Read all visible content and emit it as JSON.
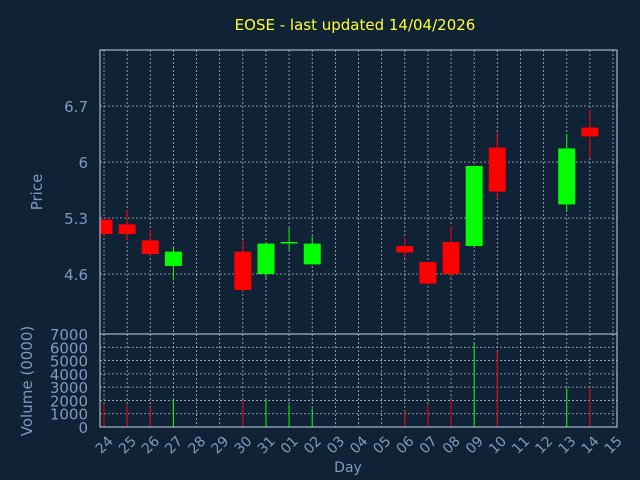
{
  "chart_data": {
    "type": "candlestick",
    "title": "EOSE - last updated 14/04/2026",
    "xlabel": "Day",
    "price_panel": {
      "ylabel": "Price",
      "ylim": [
        3.85,
        7.4
      ],
      "yticks": [
        "4.6",
        "5.3",
        "6",
        "6.7"
      ],
      "grid": true
    },
    "volume_panel": {
      "ylabel": "Volume (0000)",
      "ylim": [
        0,
        7000
      ],
      "yticks": [
        "0",
        "1000",
        "2000",
        "3000",
        "4000",
        "5000",
        "6000",
        "7000"
      ],
      "grid": true
    },
    "x_ticks": [
      "24",
      "25",
      "26",
      "27",
      "28",
      "29",
      "30",
      "31",
      "01",
      "02",
      "03",
      "04",
      "05",
      "06",
      "07",
      "08",
      "09",
      "10",
      "11",
      "12",
      "13",
      "14",
      "15"
    ],
    "up_color": "#00ff00",
    "down_color": "#ff0000",
    "candles": [
      {
        "x": 0,
        "open": 5.28,
        "high": 5.3,
        "low": 5.08,
        "close": 5.1,
        "volume": 1800
      },
      {
        "x": 1,
        "open": 5.22,
        "high": 5.4,
        "low": 5.02,
        "close": 5.1,
        "volume": 1700
      },
      {
        "x": 2,
        "open": 5.02,
        "high": 5.15,
        "low": 4.82,
        "close": 4.85,
        "volume": 1500
      },
      {
        "x": 3,
        "open": 4.7,
        "high": 4.93,
        "low": 4.52,
        "close": 4.88,
        "volume": 2100
      },
      {
        "x": 6,
        "open": 4.88,
        "high": 5.02,
        "low": 4.38,
        "close": 4.4,
        "volume": 2000
      },
      {
        "x": 7,
        "open": 4.6,
        "high": 5.0,
        "low": 4.55,
        "close": 4.98,
        "volume": 2000
      },
      {
        "x": 8,
        "open": 5.0,
        "high": 5.18,
        "low": 4.9,
        "close": 5.0,
        "volume": 1700
      },
      {
        "x": 9,
        "open": 4.72,
        "high": 5.07,
        "low": 4.72,
        "close": 4.98,
        "volume": 1400
      },
      {
        "x": 13,
        "open": 4.95,
        "high": 5.05,
        "low": 4.8,
        "close": 4.87,
        "volume": 1200
      },
      {
        "x": 14,
        "open": 4.75,
        "high": 4.75,
        "low": 4.48,
        "close": 4.48,
        "volume": 1700
      },
      {
        "x": 15,
        "open": 5.0,
        "high": 5.2,
        "low": 4.55,
        "close": 4.6,
        "volume": 2100
      },
      {
        "x": 16,
        "open": 4.95,
        "high": 5.95,
        "low": 4.95,
        "close": 5.95,
        "volume": 6300
      },
      {
        "x": 17,
        "open": 6.18,
        "high": 6.37,
        "low": 5.53,
        "close": 5.63,
        "volume": 5700
      },
      {
        "x": 20,
        "open": 5.47,
        "high": 6.35,
        "low": 5.38,
        "close": 6.17,
        "volume": 2900
      },
      {
        "x": 21,
        "open": 6.43,
        "high": 6.65,
        "low": 6.05,
        "close": 6.32,
        "volume": 3000
      }
    ]
  }
}
